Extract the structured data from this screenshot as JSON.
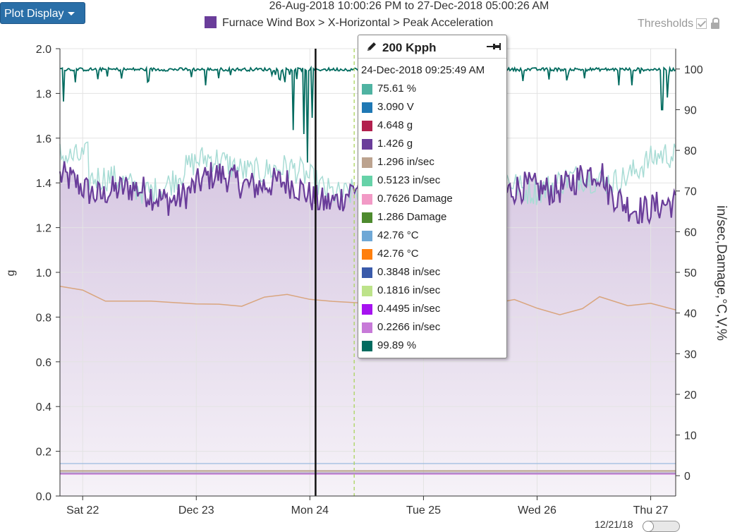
{
  "toolbar": {
    "plot_display_label": "Plot Display"
  },
  "header": {
    "date_range": "26-Aug-2018 10:00:26 PM to 27-Dec-2018 05:00:26 AM",
    "series_path": "Furnace Wind Box > X-Horizontal > Peak Acceleration",
    "series_color": "#6a3d9a",
    "thresholds_label": "Thresholds",
    "thresholds_checked": true
  },
  "tooltip": {
    "title": "200 Kpph",
    "timestamp": "24-Dec-2018 09:25:49 AM",
    "rows": [
      {
        "value": "75.61 %",
        "color": "#4fb3a2"
      },
      {
        "value": "3.090 V",
        "color": "#1f78b4"
      },
      {
        "value": "4.648 g",
        "color": "#b2204e"
      },
      {
        "value": "1.426 g",
        "color": "#6a3d9a"
      },
      {
        "value": "1.296 in/sec",
        "color": "#bca38f"
      },
      {
        "value": "0.5123 in/sec",
        "color": "#66d2a8"
      },
      {
        "value": "0.7626 Damage",
        "color": "#f29ac6"
      },
      {
        "value": "1.286 Damage",
        "color": "#4d8a2e"
      },
      {
        "value": "42.76 °C",
        "color": "#6fa8d6"
      },
      {
        "value": "42.76 °C",
        "color": "#ff7f0e"
      },
      {
        "value": "0.3848 in/sec",
        "color": "#3a5aaa"
      },
      {
        "value": "0.1816 in/sec",
        "color": "#bde38a"
      },
      {
        "value": "0.4495 in/sec",
        "color": "#a612f0"
      },
      {
        "value": "0.2266 in/sec",
        "color": "#c77ad8"
      },
      {
        "value": "99.89 %",
        "color": "#006b5f"
      }
    ]
  },
  "footer": {
    "date_label": "12/21/18"
  },
  "chart_data": {
    "type": "line",
    "title": "Furnace Wind Box > X-Horizontal > Peak Acceleration",
    "x_ticks": [
      "Sat 22",
      "Dec 23",
      "Mon 24",
      "Tue 25",
      "Wed 26",
      "Thu 27"
    ],
    "x_range_days": [
      21.8,
      27.22
    ],
    "ylabel_left": "g",
    "ylabel_right": "in/sec,Damage,°C,V,%",
    "ylim_left": [
      0.0,
      2.0
    ],
    "ylim_right": [
      -5,
      105
    ],
    "y_ticks_left": [
      "0.0",
      "0.2",
      "0.4",
      "0.6",
      "0.8",
      "1.0",
      "1.2",
      "1.4",
      "1.6",
      "1.8",
      "2.0"
    ],
    "y_ticks_right": [
      "0",
      "10",
      "20",
      "30",
      "40",
      "50",
      "60",
      "70",
      "80",
      "90",
      "100"
    ],
    "grid": true,
    "cursor_x_day": 24.05,
    "marker_x_day": 24.39,
    "series": [
      {
        "name": "Peak Acceleration",
        "axis": "left",
        "color": "#6a3d9a",
        "fill": true,
        "approx_level": 1.38,
        "range": [
          1.22,
          1.56
        ]
      },
      {
        "name": "",
        "axis": "right",
        "color": "#006b5f",
        "approx_level": 99.9,
        "range": [
          77,
          100
        ]
      },
      {
        "name": "",
        "axis": "right",
        "color": "#a8dcd5",
        "approx_level": 74,
        "range": [
          66,
          84
        ]
      },
      {
        "name": "",
        "axis": "left",
        "color": "#d9a57e",
        "points": [
          [
            21.8,
            0.94
          ],
          [
            22.0,
            0.92
          ],
          [
            22.2,
            0.87
          ],
          [
            22.6,
            0.87
          ],
          [
            23.0,
            0.86
          ],
          [
            23.2,
            0.86
          ],
          [
            23.4,
            0.85
          ],
          [
            23.6,
            0.89
          ],
          [
            23.8,
            0.9
          ],
          [
            24.0,
            0.88
          ],
          [
            24.2,
            0.87
          ],
          [
            24.6,
            0.86
          ],
          [
            25.0,
            0.86
          ],
          [
            25.4,
            0.86
          ],
          [
            25.6,
            0.86
          ],
          [
            25.8,
            0.88
          ],
          [
            26.0,
            0.84
          ],
          [
            26.2,
            0.81
          ],
          [
            26.4,
            0.84
          ],
          [
            26.55,
            0.89
          ],
          [
            26.8,
            0.85
          ],
          [
            27.0,
            0.86
          ],
          [
            27.22,
            0.83
          ]
        ]
      },
      {
        "name": "",
        "axis": "left",
        "color": "#9bbbe0",
        "approx_level": 0.145
      },
      {
        "name": "",
        "axis": "left",
        "color": "#b5a088",
        "approx_level": 0.11
      },
      {
        "name": "",
        "axis": "left",
        "color": "#c77ad8",
        "approx_level": 0.1
      }
    ]
  }
}
